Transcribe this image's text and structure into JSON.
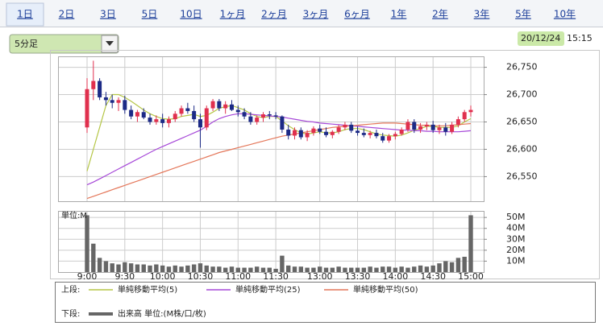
{
  "tabs": [
    "1日",
    "2日",
    "3日",
    "5日",
    "10日",
    "1ヶ月",
    "2ヶ月",
    "3ヶ月",
    "6ヶ月",
    "1年",
    "2年",
    "3年",
    "5年",
    "10年"
  ],
  "selected_tab": 0,
  "interval_select": "5分足",
  "date": "20/12/24",
  "time": "15:15",
  "legend_upper": "上段:",
  "legend_lower": "下段:",
  "chart_data": [
    {
      "type": "candlestick",
      "categories": [
        "9:00",
        null,
        null,
        null,
        null,
        null,
        "9:30",
        null,
        null,
        null,
        null,
        null,
        "10:00",
        null,
        null,
        null,
        null,
        null,
        "10:30",
        null,
        null,
        null,
        null,
        null,
        "11:00",
        null,
        null,
        null,
        null,
        null,
        "11:30",
        null,
        null,
        null,
        null,
        null,
        null,
        "13:00",
        null,
        null,
        null,
        null,
        null,
        "13:30",
        null,
        null,
        null,
        null,
        null,
        "14:00",
        null,
        null,
        null,
        null,
        null,
        "14:30",
        null,
        null,
        null,
        null,
        null,
        "15:00"
      ],
      "open": [
        26640,
        26710,
        26725,
        26695,
        26690,
        26685,
        26690,
        26672,
        26660,
        26668,
        26658,
        26650,
        26655,
        26648,
        26655,
        26665,
        26675,
        26670,
        26655,
        26640,
        26675,
        26688,
        26675,
        26682,
        26672,
        26668,
        26660,
        26650,
        26658,
        26664,
        26662,
        26660,
        26636,
        26625,
        26635,
        26622,
        26630,
        26638,
        26632,
        26626,
        26632,
        26640,
        26645,
        26634,
        26630,
        26626,
        26630,
        26624,
        26616,
        26624,
        26628,
        26636,
        26650,
        26636,
        26642,
        26645,
        26635,
        26640,
        26632,
        26645,
        26655,
        26668
      ],
      "high": [
        26730,
        26762,
        26730,
        26705,
        26700,
        26695,
        26698,
        26680,
        26672,
        26675,
        26665,
        26662,
        26665,
        26660,
        26670,
        26680,
        26685,
        26680,
        26665,
        26680,
        26692,
        26692,
        26688,
        26690,
        26680,
        26675,
        26668,
        26662,
        26668,
        26670,
        26668,
        26662,
        26645,
        26640,
        26640,
        26635,
        26642,
        26645,
        26640,
        26635,
        26645,
        26650,
        26650,
        26642,
        26638,
        26634,
        26636,
        26630,
        26628,
        26632,
        26640,
        26655,
        26655,
        26648,
        26650,
        26652,
        26645,
        26648,
        26650,
        26660,
        26672,
        26680
      ],
      "low": [
        26630,
        26690,
        26690,
        26680,
        26675,
        26670,
        26665,
        26655,
        26650,
        26655,
        26645,
        26645,
        26640,
        26640,
        26650,
        26660,
        26665,
        26650,
        26603,
        26635,
        26670,
        26670,
        26665,
        26670,
        26660,
        26655,
        26645,
        26645,
        26650,
        26655,
        26655,
        26630,
        26618,
        26618,
        26618,
        26615,
        26625,
        26628,
        26622,
        26620,
        26628,
        26635,
        26630,
        26625,
        26622,
        26620,
        26620,
        26612,
        26612,
        26618,
        26625,
        26632,
        26630,
        26630,
        26635,
        26630,
        26628,
        26625,
        26628,
        26640,
        26650,
        26660
      ],
      "close": [
        26710,
        26725,
        26695,
        26690,
        26685,
        26690,
        26672,
        26660,
        26668,
        26658,
        26650,
        26655,
        26648,
        26655,
        26665,
        26675,
        26670,
        26655,
        26640,
        26675,
        26688,
        26675,
        26682,
        26672,
        26668,
        26660,
        26650,
        26658,
        26664,
        26662,
        26660,
        26636,
        26625,
        26635,
        26622,
        26630,
        26638,
        26632,
        26626,
        26632,
        26640,
        26645,
        26634,
        26630,
        26626,
        26630,
        26624,
        26616,
        26624,
        26628,
        26636,
        26650,
        26636,
        26642,
        26645,
        26635,
        26640,
        26632,
        26645,
        26655,
        26668,
        26672
      ],
      "up_color": "#e0304e",
      "down_color": "#1c2a86",
      "series": [
        {
          "name": "単純移動平均(5)",
          "color": "#b5c646",
          "values": [
            26560,
            26600,
            26640,
            26680,
            26700,
            26700,
            26695,
            26688,
            26680,
            26672,
            26665,
            26660,
            26656,
            26655,
            26656,
            26660,
            26662,
            26664,
            26660,
            26662,
            26668,
            26675,
            26678,
            26680,
            26676,
            26672,
            26665,
            26660,
            26658,
            26660,
            26660,
            26652,
            26643,
            26636,
            26630,
            26628,
            26630,
            26632,
            26630,
            26630,
            26632,
            26636,
            26638,
            26638,
            26636,
            26632,
            26628,
            26626,
            26625,
            26624,
            26626,
            26630,
            26635,
            26638,
            26642,
            26642,
            26640,
            26640,
            26640,
            26643,
            26650,
            26656
          ]
        },
        {
          "name": "単純移動平均(25)",
          "color": "#a648d8",
          "values": [
            26535,
            26540,
            26546,
            26552,
            26558,
            26564,
            26570,
            26576,
            26582,
            26588,
            26594,
            26600,
            26605,
            26610,
            26615,
            26620,
            26625,
            26630,
            26635,
            26642,
            26650,
            26656,
            26660,
            26663,
            26665,
            26665,
            26664,
            26663,
            26662,
            26661,
            26660,
            26659,
            26657,
            26655,
            26653,
            26651,
            26650,
            26648,
            26647,
            26646,
            26645,
            26644,
            26643,
            26642,
            26641,
            26640,
            26639,
            26638,
            26637,
            26636,
            26635,
            26635,
            26634,
            26634,
            26633,
            26633,
            26632,
            26632,
            26632,
            26632,
            26633,
            26634
          ]
        },
        {
          "name": "単純移動平均(50)",
          "color": "#e4775a",
          "values": [
            26510,
            26514,
            26518,
            26522,
            26526,
            26530,
            26534,
            26538,
            26542,
            26546,
            26550,
            26554,
            26558,
            26562,
            26566,
            26570,
            26574,
            26578,
            26582,
            26586,
            26590,
            26594,
            26597,
            26600,
            26603,
            26606,
            26609,
            26612,
            26615,
            26618,
            26621,
            26624,
            26626,
            26628,
            26630,
            26632,
            26634,
            26636,
            26638,
            26640,
            26641,
            26642,
            26643,
            26644,
            26645,
            26646,
            26647,
            26648,
            26648,
            26648,
            26647,
            26646,
            26645,
            26644,
            26644,
            26643,
            26643,
            26643,
            26644,
            26645,
            26646,
            26647
          ]
        }
      ],
      "ylim": [
        26505,
        26770
      ],
      "yticks": [
        {
          "value": 26550,
          "label": "26,550"
        },
        {
          "value": 26600,
          "label": "26,600"
        },
        {
          "value": 26650,
          "label": "26,650"
        },
        {
          "value": 26700,
          "label": "26,700"
        },
        {
          "value": 26750,
          "label": "26,750"
        }
      ],
      "grid": true
    },
    {
      "type": "bar",
      "title": "単位:M",
      "series": [
        {
          "name": "出来高 単位:(M株/口/枚)",
          "color": "#666666",
          "values": [
            52,
            26,
            13,
            10,
            8,
            7,
            9,
            8,
            7,
            7,
            6,
            7,
            6,
            5,
            6,
            5,
            6,
            7,
            8,
            6,
            5,
            5,
            4,
            5,
            4,
            4,
            4,
            5,
            4,
            4,
            3,
            15,
            6,
            5,
            5,
            4,
            4,
            5,
            4,
            4,
            5,
            4,
            4,
            4,
            4,
            5,
            4,
            5,
            5,
            4,
            5,
            4,
            5,
            6,
            5,
            6,
            8,
            10,
            9,
            13,
            14,
            52
          ]
        }
      ],
      "ylim": [
        0,
        56
      ],
      "yticks": [
        {
          "value": 10,
          "label": "10M"
        },
        {
          "value": 20,
          "label": "20M"
        },
        {
          "value": 30,
          "label": "30M"
        },
        {
          "value": 40,
          "label": "40M"
        },
        {
          "value": 50,
          "label": "50M"
        }
      ],
      "grid": true
    }
  ]
}
